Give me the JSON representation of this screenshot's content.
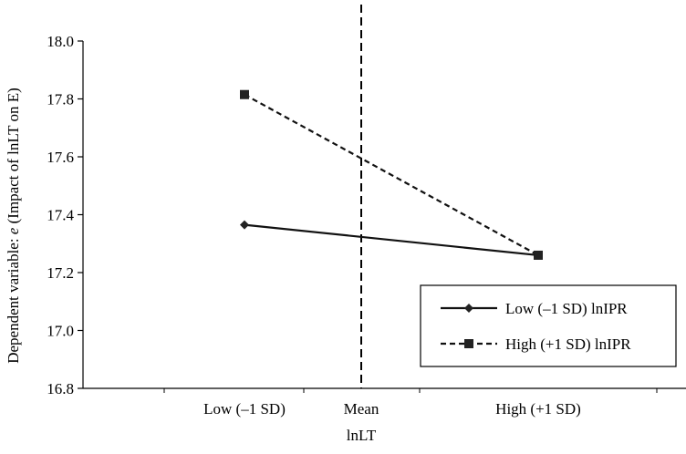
{
  "chart_data": {
    "type": "line",
    "title": "",
    "xlabel": "lnLT",
    "ylabel": "Dependent variable: e (Impact of lnLT on E)",
    "ylabel_parts": {
      "prefix": "Dependent variable: ",
      "italic": "e",
      "suffix": " (Impact of lnLT on E)"
    },
    "categories": [
      "Low (–1 SD)",
      "Mean",
      "High (+1 SD)"
    ],
    "ylim": [
      16.8,
      18.0
    ],
    "yticks": [
      "16.8",
      "17.0",
      "17.2",
      "17.4",
      "17.6",
      "17.8",
      "18.0"
    ],
    "grid": false,
    "legend_position": "bottom-right",
    "mean_reference_line": true,
    "series": [
      {
        "name": "Low (–1 SD) lnIPR",
        "marker": "diamond",
        "line_style": "solid",
        "x": [
          "Low (–1 SD)",
          "High (+1 SD)"
        ],
        "values": [
          17.365,
          17.26
        ]
      },
      {
        "name": "High (+1 SD) lnIPR",
        "marker": "square",
        "line_style": "dashed",
        "x": [
          "Low (–1 SD)",
          "High (+1 SD)"
        ],
        "values": [
          17.815,
          17.26
        ]
      }
    ]
  }
}
